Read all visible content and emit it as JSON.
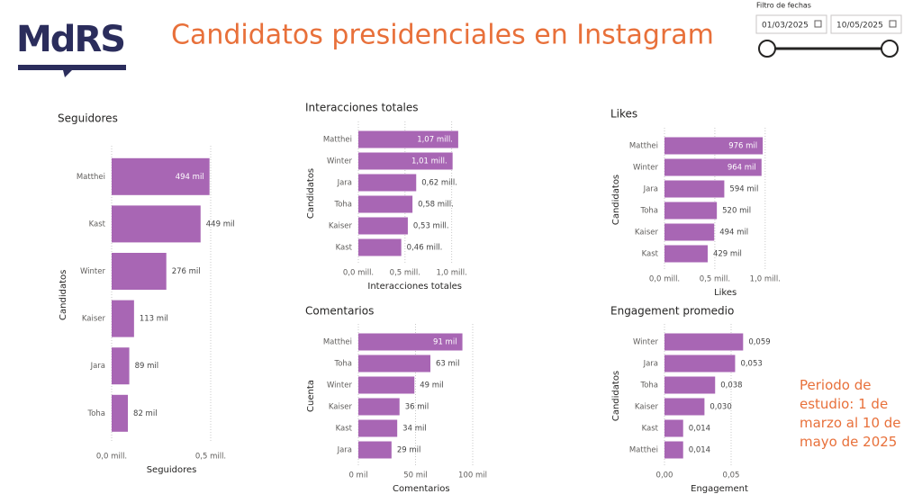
{
  "header": {
    "logo": "MdRS",
    "title": "Candidatos presidenciales en Instagram",
    "filter_label": "Filtro de fechas",
    "date_start": "01/03/2025",
    "date_end": "10/05/2025"
  },
  "note": "Periodo de estudio: 1 de marzo al 10 de mayo de 2025",
  "chart_data": [
    {
      "type": "bar",
      "orientation": "horizontal",
      "title": "Seguidores",
      "color": "#a866b4",
      "grid": true,
      "categories": [
        "Matthei",
        "Kast",
        "Winter",
        "Kaiser",
        "Jara",
        "Toha"
      ],
      "values": [
        494000,
        449000,
        276000,
        113000,
        89000,
        82000
      ],
      "value_labels": [
        "494 mil",
        "449 mil",
        "276 mil",
        "113 mil",
        "89 mil",
        "82 mil"
      ],
      "xlim": [
        0,
        550000
      ],
      "xticks": [
        {
          "value": 0,
          "label": "0,0 mill."
        },
        {
          "value": 500000,
          "label": "0,5 mill."
        }
      ],
      "x_label": "Seguidores",
      "y_label": "Candidatos"
    },
    {
      "type": "bar",
      "orientation": "horizontal",
      "title": "Interacciones totales",
      "color": "#a866b4",
      "grid": true,
      "categories": [
        "Matthei",
        "Winter",
        "Jara",
        "Toha",
        "Kaiser",
        "Kast"
      ],
      "values": [
        1070000,
        1010000,
        620000,
        580000,
        530000,
        460000
      ],
      "value_labels": [
        "1,07 mill.",
        "1,01 mill.",
        "0,62 mill.",
        "0,58 mill.",
        "0,53 mill.",
        "0,46 mill."
      ],
      "xlim": [
        0,
        1100000
      ],
      "xticks": [
        {
          "value": 0,
          "label": "0,0 mill."
        },
        {
          "value": 500000,
          "label": "0,5 mill."
        },
        {
          "value": 1000000,
          "label": "1,0 mill."
        }
      ],
      "x_label": "Interacciones totales",
      "y_label": "Candidatos"
    },
    {
      "type": "bar",
      "orientation": "horizontal",
      "title": "Likes",
      "color": "#a866b4",
      "grid": true,
      "categories": [
        "Matthei",
        "Winter",
        "Jara",
        "Toha",
        "Kaiser",
        "Kast"
      ],
      "values": [
        976000,
        964000,
        594000,
        520000,
        494000,
        429000
      ],
      "value_labels": [
        "976 mil",
        "964 mil",
        "594 mil",
        "520 mil",
        "494 mil",
        "429 mil"
      ],
      "xlim": [
        0,
        1100000
      ],
      "xticks": [
        {
          "value": 0,
          "label": "0,0 mill."
        },
        {
          "value": 500000,
          "label": "0,5 mill."
        },
        {
          "value": 1000000,
          "label": "1,0 mill."
        }
      ],
      "x_label": "Likes",
      "y_label": "Candidatos"
    },
    {
      "type": "bar",
      "orientation": "horizontal",
      "title": "Comentarios",
      "color": "#a866b4",
      "grid": true,
      "categories": [
        "Matthei",
        "Toha",
        "Winter",
        "Kaiser",
        "Kast",
        "Jara"
      ],
      "values": [
        91000,
        63000,
        49000,
        36000,
        34000,
        29000
      ],
      "value_labels": [
        "91 mil",
        "63 mil",
        "49 mil",
        "36 mil",
        "34 mil",
        "29 mil"
      ],
      "xlim": [
        0,
        100000
      ],
      "xticks": [
        {
          "value": 0,
          "label": "0 mil"
        },
        {
          "value": 50000,
          "label": "50 mil"
        },
        {
          "value": 100000,
          "label": "100 mil"
        }
      ],
      "x_label": "Comentarios",
      "y_label": "Cuenta"
    },
    {
      "type": "bar",
      "orientation": "horizontal",
      "title": "Engagement promedio",
      "color": "#a866b4",
      "grid": true,
      "categories": [
        "Winter",
        "Jara",
        "Toha",
        "Kaiser",
        "Kast",
        "Matthei"
      ],
      "values": [
        0.059,
        0.053,
        0.038,
        0.03,
        0.014,
        0.014
      ],
      "value_labels": [
        "0,059",
        "0,053",
        "0,038",
        "0,030",
        "0,014",
        "0,014"
      ],
      "xlim": [
        0,
        0.075
      ],
      "xticks": [
        {
          "value": 0,
          "label": "0,00"
        },
        {
          "value": 0.05,
          "label": "0,05"
        }
      ],
      "x_label": "Engagement",
      "y_label": "Candidatos"
    }
  ]
}
